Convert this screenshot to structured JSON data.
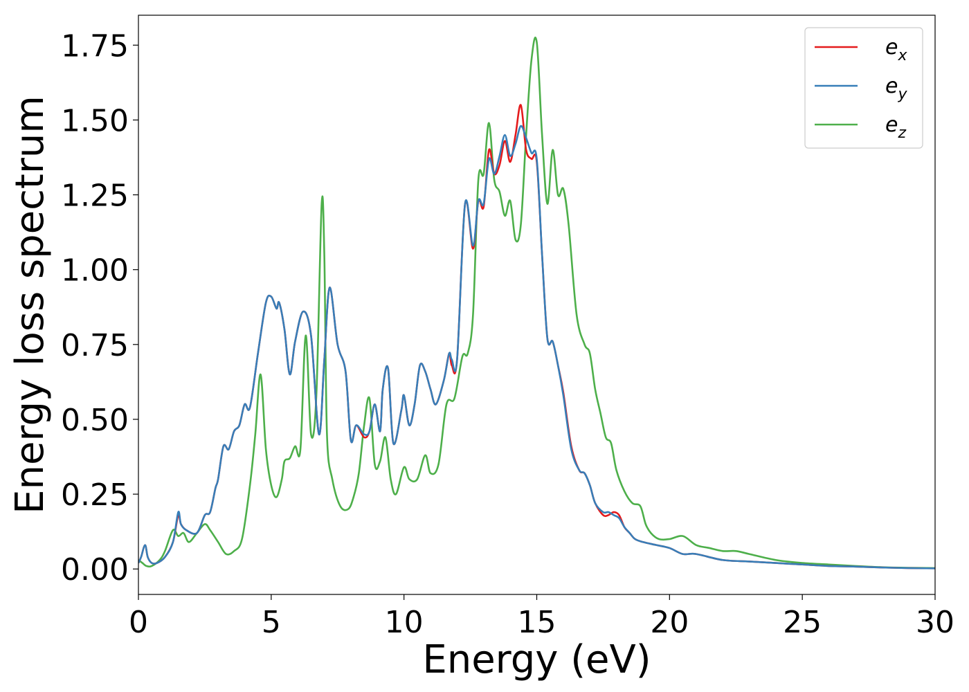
{
  "colors": {
    "e_x": "#e41a1c",
    "e_y": "#377eb8",
    "e_z": "#4daf4a",
    "axis": "#000000",
    "legend_border": "#cccccc"
  },
  "chart_data": {
    "type": "line",
    "xlabel": "Energy (eV)",
    "ylabel": "Energy loss spectrum",
    "xlim": [
      0,
      30
    ],
    "ylim": [
      -0.085,
      1.85
    ],
    "xticks": [
      0,
      5,
      10,
      15,
      20,
      25,
      30
    ],
    "xtick_labels": [
      "0",
      "5",
      "10",
      "15",
      "20",
      "25",
      "30"
    ],
    "yticks": [
      0.0,
      0.25,
      0.5,
      0.75,
      1.0,
      1.25,
      1.5,
      1.75
    ],
    "ytick_labels": [
      "0.00",
      "0.25",
      "0.50",
      "0.75",
      "1.00",
      "1.25",
      "1.50",
      "1.75"
    ],
    "grid": false,
    "legend_position": "top-right",
    "series": [
      {
        "name": "e_x",
        "label_base": "e",
        "label_sub": "x",
        "x": [
          0.0,
          0.1,
          0.25,
          0.35,
          0.5,
          0.7,
          1.0,
          1.3,
          1.5,
          1.6,
          1.8,
          2.2,
          2.5,
          2.7,
          2.9,
          3.0,
          3.2,
          3.4,
          3.6,
          3.8,
          4.0,
          4.2,
          4.5,
          4.8,
          5.0,
          5.2,
          5.3,
          5.5,
          5.7,
          5.9,
          6.2,
          6.5,
          6.8,
          7.0,
          7.2,
          7.5,
          7.8,
          8.0,
          8.2,
          8.5,
          8.7,
          8.9,
          9.1,
          9.2,
          9.4,
          9.6,
          9.9,
          10.0,
          10.2,
          10.4,
          10.6,
          10.8,
          11.0,
          11.2,
          11.5,
          11.7,
          11.8,
          12.0,
          12.3,
          12.6,
          12.8,
          13.0,
          13.2,
          13.4,
          13.6,
          13.8,
          14.0,
          14.2,
          14.4,
          14.6,
          14.8,
          15.0,
          15.2,
          15.4,
          15.6,
          15.8,
          16.0,
          16.3,
          16.6,
          16.8,
          17.0,
          17.2,
          17.5,
          17.7,
          17.9,
          18.1,
          18.3,
          18.5,
          18.7,
          19.0,
          19.5,
          20.0,
          20.5,
          21.0,
          22.0,
          23.0,
          24.0,
          25.0,
          26.0,
          27.0,
          28.0,
          29.0,
          30.0
        ],
        "y": [
          0.02,
          0.04,
          0.08,
          0.04,
          0.02,
          0.02,
          0.04,
          0.09,
          0.18,
          0.15,
          0.13,
          0.12,
          0.18,
          0.19,
          0.27,
          0.3,
          0.41,
          0.4,
          0.46,
          0.48,
          0.55,
          0.54,
          0.72,
          0.89,
          0.91,
          0.87,
          0.89,
          0.8,
          0.65,
          0.76,
          0.86,
          0.78,
          0.45,
          0.7,
          0.94,
          0.75,
          0.66,
          0.43,
          0.48,
          0.44,
          0.46,
          0.55,
          0.46,
          0.6,
          0.67,
          0.42,
          0.53,
          0.58,
          0.48,
          0.55,
          0.68,
          0.66,
          0.6,
          0.55,
          0.63,
          0.72,
          0.68,
          0.7,
          1.22,
          1.07,
          1.23,
          1.21,
          1.4,
          1.32,
          1.35,
          1.43,
          1.36,
          1.45,
          1.55,
          1.4,
          1.37,
          1.36,
          1.05,
          0.77,
          0.76,
          0.68,
          0.59,
          0.41,
          0.33,
          0.32,
          0.28,
          0.22,
          0.18,
          0.18,
          0.19,
          0.18,
          0.14,
          0.12,
          0.1,
          0.09,
          0.08,
          0.07,
          0.05,
          0.05,
          0.03,
          0.025,
          0.02,
          0.015,
          0.01,
          0.008,
          0.005,
          0.003,
          0.002
        ]
      },
      {
        "name": "e_y",
        "label_base": "e",
        "label_sub": "y",
        "x": [
          0.0,
          0.1,
          0.25,
          0.35,
          0.5,
          0.7,
          1.0,
          1.3,
          1.5,
          1.6,
          1.8,
          2.2,
          2.5,
          2.7,
          2.9,
          3.0,
          3.2,
          3.4,
          3.6,
          3.8,
          4.0,
          4.2,
          4.5,
          4.8,
          5.0,
          5.2,
          5.3,
          5.5,
          5.7,
          5.9,
          6.2,
          6.5,
          6.8,
          7.0,
          7.2,
          7.5,
          7.8,
          8.0,
          8.2,
          8.5,
          8.7,
          8.9,
          9.1,
          9.2,
          9.4,
          9.6,
          9.9,
          10.0,
          10.2,
          10.4,
          10.6,
          10.8,
          11.0,
          11.2,
          11.5,
          11.7,
          11.8,
          12.0,
          12.3,
          12.6,
          12.8,
          13.0,
          13.2,
          13.4,
          13.6,
          13.8,
          14.0,
          14.2,
          14.4,
          14.6,
          14.8,
          15.0,
          15.2,
          15.4,
          15.6,
          15.8,
          16.0,
          16.3,
          16.6,
          16.8,
          17.0,
          17.2,
          17.5,
          17.7,
          17.9,
          18.1,
          18.3,
          18.5,
          18.7,
          19.0,
          19.5,
          20.0,
          20.5,
          21.0,
          22.0,
          23.0,
          24.0,
          25.0,
          26.0,
          27.0,
          28.0,
          29.0,
          30.0
        ],
        "y": [
          0.02,
          0.04,
          0.08,
          0.04,
          0.02,
          0.02,
          0.04,
          0.09,
          0.19,
          0.15,
          0.13,
          0.12,
          0.18,
          0.19,
          0.27,
          0.3,
          0.41,
          0.4,
          0.46,
          0.48,
          0.55,
          0.54,
          0.72,
          0.89,
          0.91,
          0.87,
          0.89,
          0.8,
          0.65,
          0.76,
          0.86,
          0.78,
          0.45,
          0.7,
          0.94,
          0.75,
          0.66,
          0.43,
          0.48,
          0.45,
          0.46,
          0.55,
          0.46,
          0.6,
          0.67,
          0.42,
          0.53,
          0.58,
          0.48,
          0.55,
          0.68,
          0.66,
          0.6,
          0.55,
          0.63,
          0.72,
          0.7,
          0.7,
          1.22,
          1.08,
          1.23,
          1.22,
          1.37,
          1.32,
          1.38,
          1.45,
          1.38,
          1.42,
          1.48,
          1.44,
          1.39,
          1.37,
          1.05,
          0.77,
          0.76,
          0.68,
          0.58,
          0.4,
          0.33,
          0.32,
          0.28,
          0.22,
          0.19,
          0.19,
          0.18,
          0.17,
          0.14,
          0.12,
          0.1,
          0.09,
          0.08,
          0.07,
          0.05,
          0.05,
          0.03,
          0.025,
          0.02,
          0.015,
          0.01,
          0.008,
          0.005,
          0.003,
          0.002
        ]
      },
      {
        "name": "e_z",
        "label_base": "e",
        "label_sub": "z",
        "x": [
          0.0,
          0.15,
          0.3,
          0.5,
          0.8,
          1.0,
          1.3,
          1.5,
          1.7,
          1.9,
          2.2,
          2.5,
          2.7,
          3.0,
          3.3,
          3.6,
          3.9,
          4.2,
          4.4,
          4.6,
          4.8,
          5.0,
          5.2,
          5.4,
          5.5,
          5.7,
          5.9,
          6.1,
          6.3,
          6.5,
          6.7,
          6.9,
          7.0,
          7.1,
          7.3,
          7.6,
          7.9,
          8.1,
          8.3,
          8.5,
          8.7,
          8.9,
          9.1,
          9.3,
          9.5,
          9.7,
          10.0,
          10.2,
          10.5,
          10.8,
          11.0,
          11.3,
          11.6,
          11.9,
          12.2,
          12.4,
          12.6,
          12.8,
          13.0,
          13.2,
          13.4,
          13.6,
          13.8,
          14.0,
          14.2,
          14.4,
          14.6,
          14.8,
          15.0,
          15.2,
          15.4,
          15.6,
          15.8,
          16.0,
          16.2,
          16.5,
          16.8,
          17.0,
          17.2,
          17.4,
          17.6,
          17.8,
          18.0,
          18.3,
          18.6,
          18.9,
          19.1,
          19.3,
          19.6,
          20.0,
          20.5,
          21.0,
          21.5,
          22.0,
          22.5,
          23.0,
          24.0,
          25.0,
          26.0,
          27.0,
          28.0,
          29.0,
          30.0
        ],
        "y": [
          0.03,
          0.02,
          0.01,
          0.01,
          0.03,
          0.06,
          0.13,
          0.11,
          0.12,
          0.09,
          0.12,
          0.15,
          0.13,
          0.09,
          0.05,
          0.06,
          0.1,
          0.28,
          0.45,
          0.65,
          0.4,
          0.28,
          0.24,
          0.3,
          0.36,
          0.37,
          0.41,
          0.4,
          0.78,
          0.45,
          0.58,
          1.22,
          1.05,
          0.45,
          0.3,
          0.21,
          0.2,
          0.24,
          0.32,
          0.48,
          0.57,
          0.35,
          0.36,
          0.44,
          0.3,
          0.25,
          0.34,
          0.3,
          0.3,
          0.38,
          0.32,
          0.35,
          0.55,
          0.57,
          0.71,
          0.72,
          0.85,
          1.3,
          1.32,
          1.49,
          1.3,
          1.26,
          1.18,
          1.23,
          1.1,
          1.15,
          1.45,
          1.7,
          1.76,
          1.45,
          1.22,
          1.4,
          1.25,
          1.27,
          1.15,
          0.85,
          0.75,
          0.72,
          0.6,
          0.52,
          0.44,
          0.42,
          0.33,
          0.26,
          0.22,
          0.21,
          0.15,
          0.12,
          0.1,
          0.1,
          0.11,
          0.08,
          0.07,
          0.06,
          0.06,
          0.05,
          0.03,
          0.02,
          0.015,
          0.01,
          0.006,
          0.004,
          0.003
        ]
      }
    ]
  }
}
